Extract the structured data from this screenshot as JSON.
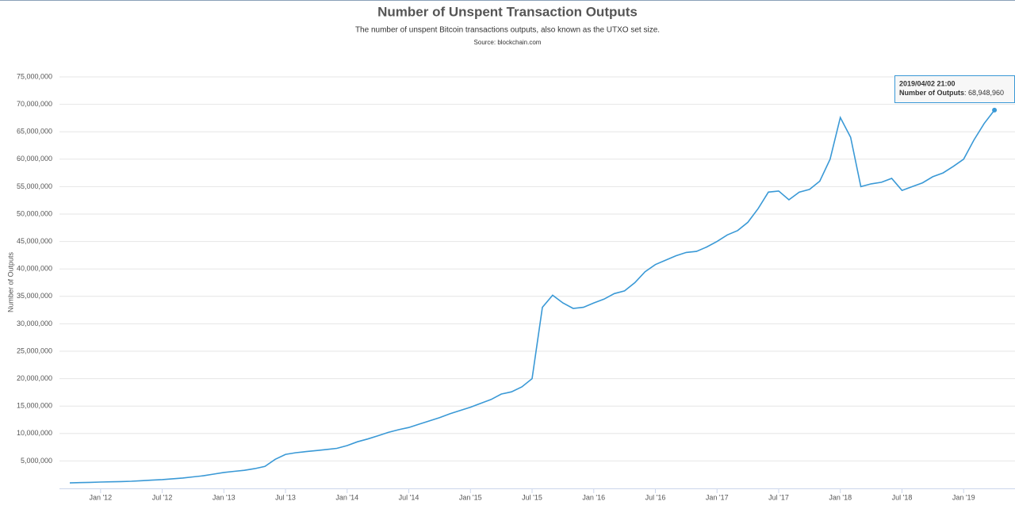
{
  "chart_data": {
    "type": "line",
    "title": "Number of Unspent Transaction Outputs",
    "subtitle": "The number of unspent Bitcoin transactions outputs, also known as the UTXO set size.",
    "source": "Source: blockchain.com",
    "y_label": "Number of Outputs",
    "x": [
      "2011-10",
      "2011-11",
      "2011-12",
      "2012-01",
      "2012-02",
      "2012-03",
      "2012-04",
      "2012-05",
      "2012-06",
      "2012-07",
      "2012-08",
      "2012-09",
      "2012-10",
      "2012-11",
      "2012-12",
      "2013-01",
      "2013-02",
      "2013-03",
      "2013-04",
      "2013-05",
      "2013-06",
      "2013-07",
      "2013-08",
      "2013-09",
      "2013-10",
      "2013-11",
      "2013-12",
      "2014-01",
      "2014-02",
      "2014-03",
      "2014-04",
      "2014-05",
      "2014-06",
      "2014-07",
      "2014-08",
      "2014-09",
      "2014-10",
      "2014-11",
      "2014-12",
      "2015-01",
      "2015-02",
      "2015-03",
      "2015-04",
      "2015-05",
      "2015-06",
      "2015-07",
      "2015-08",
      "2015-09",
      "2015-10",
      "2015-11",
      "2015-12",
      "2016-01",
      "2016-02",
      "2016-03",
      "2016-04",
      "2016-05",
      "2016-06",
      "2016-07",
      "2016-08",
      "2016-09",
      "2016-10",
      "2016-11",
      "2016-12",
      "2017-01",
      "2017-02",
      "2017-03",
      "2017-04",
      "2017-05",
      "2017-06",
      "2017-07",
      "2017-08",
      "2017-09",
      "2017-10",
      "2017-11",
      "2017-12",
      "2018-01",
      "2018-02",
      "2018-03",
      "2018-04",
      "2018-05",
      "2018-06",
      "2018-07",
      "2018-08",
      "2018-09",
      "2018-10",
      "2018-11",
      "2018-12",
      "2019-01",
      "2019-02",
      "2019-03",
      "2019-04"
    ],
    "series": [
      {
        "name": "Number of Outputs",
        "color": "#3a99d6",
        "values": [
          1000000,
          1050000,
          1100000,
          1150000,
          1200000,
          1250000,
          1300000,
          1400000,
          1500000,
          1600000,
          1750000,
          1900000,
          2100000,
          2300000,
          2600000,
          2900000,
          3100000,
          3300000,
          3600000,
          4000000,
          5300000,
          6200000,
          6500000,
          6700000,
          6900000,
          7100000,
          7300000,
          7800000,
          8500000,
          9000000,
          9600000,
          10200000,
          10700000,
          11100000,
          11700000,
          12300000,
          12900000,
          13600000,
          14200000,
          14800000,
          15500000,
          16200000,
          17200000,
          17600000,
          18500000,
          20000000,
          33000000,
          35200000,
          33800000,
          32800000,
          33000000,
          33800000,
          34500000,
          35500000,
          36000000,
          37500000,
          39500000,
          40800000,
          41600000,
          42400000,
          43000000,
          43200000,
          44000000,
          45000000,
          46200000,
          47000000,
          48500000,
          51000000,
          54000000,
          54200000,
          52600000,
          54000000,
          54500000,
          56000000,
          60000000,
          67600000,
          64000000,
          55000000,
          55500000,
          55800000,
          56500000,
          54300000,
          55000000,
          55700000,
          56800000,
          57500000,
          58700000,
          60000000,
          63500000,
          66500000,
          68948960
        ]
      }
    ],
    "tooltip": {
      "date": "2019/04/02 21:00",
      "value_label": "68,948,960"
    },
    "xlim": [
      "2011-09",
      "2019-06"
    ],
    "xticks": [
      {
        "value": "2012-01",
        "label": "Jan '12"
      },
      {
        "value": "2012-07",
        "label": "Jul '12"
      },
      {
        "value": "2013-01",
        "label": "Jan '13"
      },
      {
        "value": "2013-07",
        "label": "Jul '13"
      },
      {
        "value": "2014-01",
        "label": "Jan '14"
      },
      {
        "value": "2014-07",
        "label": "Jul '14"
      },
      {
        "value": "2015-01",
        "label": "Jan '15"
      },
      {
        "value": "2015-07",
        "label": "Jul '15"
      },
      {
        "value": "2016-01",
        "label": "Jan '16"
      },
      {
        "value": "2016-07",
        "label": "Jul '16"
      },
      {
        "value": "2017-01",
        "label": "Jan '17"
      },
      {
        "value": "2017-07",
        "label": "Jul '17"
      },
      {
        "value": "2018-01",
        "label": "Jan '18"
      },
      {
        "value": "2018-07",
        "label": "Jul '18"
      },
      {
        "value": "2019-01",
        "label": "Jan '19"
      }
    ],
    "ylim": [
      0,
      75000000
    ],
    "yticks": [
      {
        "value": 5000000,
        "label": "5,000,000"
      },
      {
        "value": 10000000,
        "label": "10,000,000"
      },
      {
        "value": 15000000,
        "label": "15,000,000"
      },
      {
        "value": 20000000,
        "label": "20,000,000"
      },
      {
        "value": 25000000,
        "label": "25,000,000"
      },
      {
        "value": 30000000,
        "label": "30,000,000"
      },
      {
        "value": 35000000,
        "label": "35,000,000"
      },
      {
        "value": 40000000,
        "label": "40,000,000"
      },
      {
        "value": 45000000,
        "label": "45,000,000"
      },
      {
        "value": 50000000,
        "label": "50,000,000"
      },
      {
        "value": 55000000,
        "label": "55,000,000"
      },
      {
        "value": 60000000,
        "label": "60,000,000"
      },
      {
        "value": 65000000,
        "label": "65,000,000"
      },
      {
        "value": 70000000,
        "label": "70,000,000"
      },
      {
        "value": 75000000,
        "label": "75,000,000"
      }
    ],
    "grid": true
  }
}
